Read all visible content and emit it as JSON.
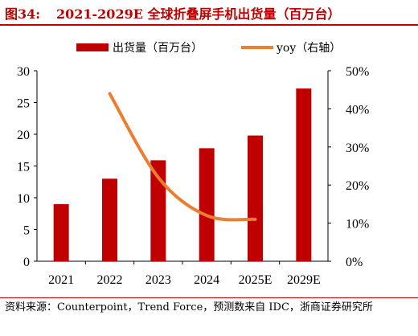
{
  "header": {
    "figure_label": "图34:",
    "title": "2021-2029E 全球折叠屏手机出货量（百万台）"
  },
  "footer": {
    "source": "资料来源：Counterpoint，Trend Force，预测数来自 IDC，浙商证券研究所"
  },
  "chart_data": {
    "type": "bar",
    "categories": [
      "2021",
      "2022",
      "2023",
      "2024",
      "2025E",
      "2029E"
    ],
    "series": [
      {
        "name": "出货量（百万台）",
        "type": "bar",
        "axis": "left",
        "color": "#c00000",
        "values": [
          9.0,
          13.0,
          15.9,
          17.8,
          19.8,
          27.2
        ]
      },
      {
        "name": "yoy（右轴）",
        "type": "line",
        "axis": "right",
        "color": "#ed7d31",
        "values": [
          null,
          0.44,
          0.22,
          0.12,
          0.11,
          null
        ]
      }
    ],
    "y_left": {
      "min": 0,
      "max": 30,
      "ticks": [
        "0",
        "5",
        "10",
        "15",
        "20",
        "25",
        "30"
      ]
    },
    "y_right": {
      "min": 0,
      "max": 0.5,
      "ticks": [
        "0%",
        "10%",
        "20%",
        "30%",
        "40%",
        "50%"
      ]
    },
    "legend_position": "top",
    "grid": false
  }
}
